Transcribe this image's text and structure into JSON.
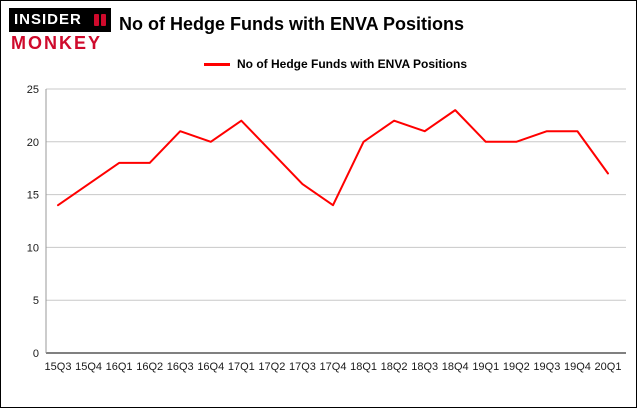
{
  "header": {
    "logo_line1": "INSIDER",
    "logo_line2": "MONKEY",
    "title": "No of Hedge Funds with ENVA Positions"
  },
  "legend": {
    "label": "No of Hedge Funds with ENVA Positions"
  },
  "colors": {
    "series_line": "#ff0000",
    "grid": "#c8c8c8",
    "axis": "#000000",
    "logo_accent": "#cf0a2c",
    "tick_text": "#1a1a1a"
  },
  "chart_data": {
    "type": "line",
    "title": "No of Hedge Funds with ENVA Positions",
    "categories": [
      "15Q3",
      "15Q4",
      "16Q1",
      "16Q2",
      "16Q3",
      "16Q4",
      "17Q1",
      "17Q2",
      "17Q3",
      "17Q4",
      "18Q1",
      "18Q2",
      "18Q3",
      "18Q4",
      "19Q1",
      "19Q2",
      "19Q3",
      "19Q4",
      "20Q1"
    ],
    "values": [
      14,
      16,
      18,
      18,
      21,
      20,
      22,
      19,
      16,
      14,
      20,
      22,
      21,
      23,
      20,
      20,
      21,
      21,
      17
    ],
    "series_name": "No of Hedge Funds with ENVA Positions",
    "xlabel": "",
    "ylabel": "",
    "ylim": [
      0,
      25
    ],
    "yticks": [
      0,
      5,
      10,
      15,
      20,
      25
    ],
    "grid": true,
    "legend_position": "top"
  }
}
